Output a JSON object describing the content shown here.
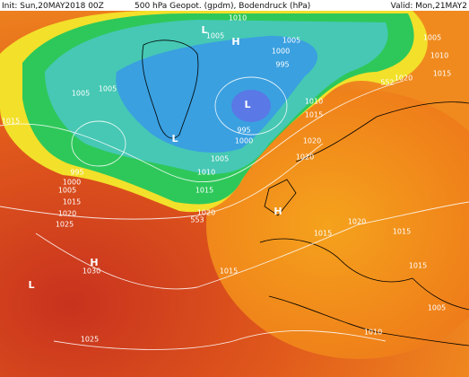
{
  "header": {
    "init": "Init: Sun,20MAY2018 00Z",
    "title": "500 hPa Geopot. (gpdm), Bodendruck (hPa)",
    "valid": "Valid: Mon,21MAY2"
  },
  "labels": [
    "1005",
    "1010",
    "L",
    "H",
    "1000",
    "995",
    "1005",
    "1005",
    "1010",
    "1020",
    "552",
    "1015",
    "1005",
    "1005",
    "1015",
    "1010",
    "1015",
    "995",
    "1000",
    "L",
    "L",
    "1005",
    "1010",
    "1015",
    "1020",
    "1020",
    "995",
    "1000",
    "1005",
    "1015",
    "1020",
    "1025",
    "1020",
    "553",
    "H",
    "1020",
    "1015",
    "1015",
    "1015",
    "H",
    "1030",
    "1015",
    "L",
    "1005",
    "1010",
    "1025"
  ]
}
